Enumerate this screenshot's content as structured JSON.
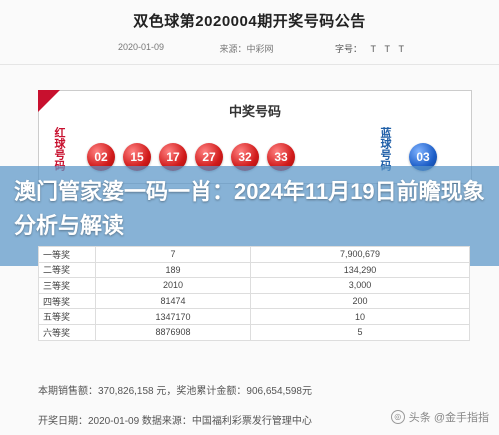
{
  "article": {
    "title": "双色球第2020004期开奖号码公告",
    "date": "2020-01-09",
    "source": "来源：中彩网",
    "font_label": "字号：",
    "font_sizes": [
      "T",
      "T",
      "T"
    ]
  },
  "draw": {
    "section_title": "中奖号码",
    "red_label": "红球号码",
    "blue_label": "蓝球号码",
    "red_balls": [
      "02",
      "15",
      "17",
      "27",
      "32",
      "33"
    ],
    "blue_ball": "03"
  },
  "overlay": {
    "headline": "澳门管家婆一码一肖：2024年11月19日前瞻现象分析与解读"
  },
  "prize_table": {
    "rows": [
      {
        "level": "一等奖",
        "count": "7",
        "amount": "7,900,679"
      },
      {
        "level": "二等奖",
        "count": "189",
        "amount": "134,290"
      },
      {
        "level": "三等奖",
        "count": "2010",
        "amount": "3,000"
      },
      {
        "level": "四等奖",
        "count": "81474",
        "amount": "200"
      },
      {
        "level": "五等奖",
        "count": "1347170",
        "amount": "10"
      },
      {
        "level": "六等奖",
        "count": "8876908",
        "amount": "5"
      }
    ]
  },
  "footer": {
    "sales_line": "本期销售额：370,826,158 元，奖池累计金额：906,654,598元",
    "date_line": "开奖日期：2020-01-09  数据来源：中国福利彩票发行管理中心"
  },
  "watermark": {
    "text": "头条 @金手指指"
  },
  "colors": {
    "red_ball": "#d01a1a",
    "blue_ball": "#1d5ec7",
    "overlay": "#5a96c8"
  }
}
